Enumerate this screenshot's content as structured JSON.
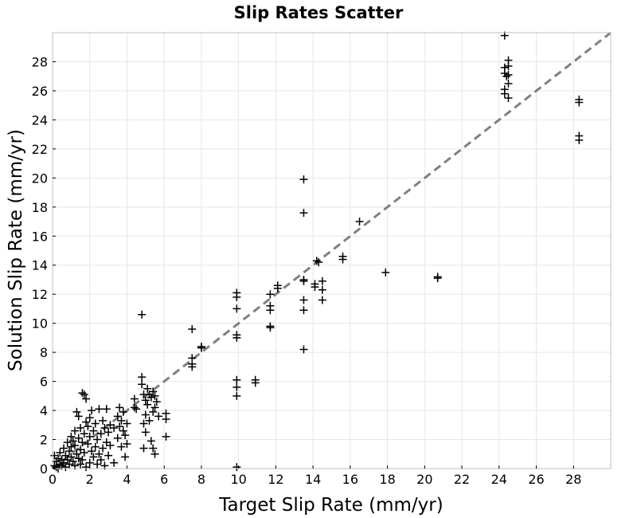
{
  "chart_data": {
    "type": "scatter",
    "title": "Slip Rates Scatter",
    "xlabel": "Target Slip Rate (mm/yr)",
    "ylabel": "Solution Slip Rate (mm/yr)",
    "xlim": [
      0,
      30
    ],
    "ylim": [
      0,
      30
    ],
    "xticks": [
      0,
      2,
      4,
      6,
      8,
      10,
      12,
      14,
      16,
      18,
      20,
      22,
      24,
      26,
      28
    ],
    "yticks": [
      0,
      2,
      4,
      6,
      8,
      10,
      12,
      14,
      16,
      18,
      20,
      22,
      24,
      26,
      28
    ],
    "grid": true,
    "marker": "+",
    "reference_line": {
      "style": "dashed",
      "color": "#808080",
      "from": [
        0,
        0
      ],
      "to": [
        30,
        30
      ]
    },
    "colors": {
      "marker": "#000000",
      "grid": "#e6e6e6",
      "frame": "#bfbfbf",
      "reference": "#808080"
    },
    "points": [
      [
        0.1,
        0.2
      ],
      [
        0.1,
        0.9
      ],
      [
        0.2,
        0.5
      ],
      [
        0.2,
        0.1
      ],
      [
        0.3,
        0.0
      ],
      [
        0.3,
        0.7
      ],
      [
        0.4,
        0.3
      ],
      [
        0.4,
        1.1
      ],
      [
        0.5,
        0.6
      ],
      [
        0.5,
        0.2
      ],
      [
        0.6,
        1.4
      ],
      [
        0.6,
        0.4
      ],
      [
        0.7,
        0.9
      ],
      [
        0.7,
        0.1
      ],
      [
        0.8,
        1.8
      ],
      [
        0.8,
        0.6
      ],
      [
        0.9,
        1.2
      ],
      [
        0.9,
        0.3
      ],
      [
        1.0,
        1.5
      ],
      [
        1.0,
        0.8
      ],
      [
        1.0,
        2.2
      ],
      [
        1.1,
        0.5
      ],
      [
        1.1,
        1.9
      ],
      [
        1.2,
        0.2
      ],
      [
        1.2,
        1.6
      ],
      [
        1.2,
        2.6
      ],
      [
        1.3,
        1.0
      ],
      [
        1.3,
        3.9
      ],
      [
        1.4,
        0.7
      ],
      [
        1.4,
        2.1
      ],
      [
        1.4,
        3.6
      ],
      [
        1.5,
        1.3
      ],
      [
        1.5,
        0.3
      ],
      [
        1.5,
        2.8
      ],
      [
        1.6,
        5.2
      ],
      [
        1.6,
        1.8
      ],
      [
        1.6,
        0.6
      ],
      [
        1.7,
        5.1
      ],
      [
        1.7,
        2.4
      ],
      [
        1.7,
        1.1
      ],
      [
        1.8,
        4.8
      ],
      [
        1.8,
        3.2
      ],
      [
        1.8,
        0.1
      ],
      [
        1.9,
        1.7
      ],
      [
        1.9,
        2.9
      ],
      [
        2.0,
        0.4
      ],
      [
        2.0,
        2.2
      ],
      [
        2.0,
        3.5
      ],
      [
        2.1,
        1.2
      ],
      [
        2.1,
        4.0
      ],
      [
        2.2,
        0.8
      ],
      [
        2.2,
        2.6
      ],
      [
        2.3,
        1.5
      ],
      [
        2.3,
        3.1
      ],
      [
        2.4,
        0.3
      ],
      [
        2.4,
        2.0
      ],
      [
        2.5,
        4.1
      ],
      [
        2.5,
        1.0
      ],
      [
        2.6,
        2.4
      ],
      [
        2.6,
        0.6
      ],
      [
        2.7,
        1.4
      ],
      [
        2.7,
        3.3
      ],
      [
        2.8,
        0.2
      ],
      [
        2.8,
        2.8
      ],
      [
        2.9,
        4.1
      ],
      [
        2.9,
        1.8
      ],
      [
        3.0,
        2.5
      ],
      [
        3.0,
        0.9
      ],
      [
        3.1,
        3.0
      ],
      [
        3.1,
        1.6
      ],
      [
        3.3,
        2.8
      ],
      [
        3.3,
        0.4
      ],
      [
        3.5,
        3.6
      ],
      [
        3.5,
        2.1
      ],
      [
        3.6,
        4.2
      ],
      [
        3.6,
        2.9
      ],
      [
        3.7,
        1.5
      ],
      [
        3.7,
        3.3
      ],
      [
        3.8,
        2.6
      ],
      [
        3.8,
        3.9
      ],
      [
        3.9,
        0.8
      ],
      [
        3.9,
        2.3
      ],
      [
        4.0,
        3.1
      ],
      [
        4.0,
        1.7
      ],
      [
        4.4,
        4.2
      ],
      [
        4.4,
        4.8
      ],
      [
        4.5,
        4.1
      ],
      [
        4.8,
        10.6
      ],
      [
        4.8,
        6.3
      ],
      [
        4.8,
        5.8
      ],
      [
        4.9,
        5.1
      ],
      [
        4.9,
        3.1
      ],
      [
        4.9,
        1.4
      ],
      [
        5.0,
        4.7
      ],
      [
        5.0,
        3.7
      ],
      [
        5.0,
        2.5
      ],
      [
        5.1,
        5.5
      ],
      [
        5.1,
        4.4
      ],
      [
        5.2,
        5.1
      ],
      [
        5.2,
        3.3
      ],
      [
        5.3,
        4.9
      ],
      [
        5.3,
        1.9
      ],
      [
        5.4,
        5.3
      ],
      [
        5.4,
        3.9
      ],
      [
        5.4,
        1.4
      ],
      [
        5.5,
        5.0
      ],
      [
        5.5,
        4.2
      ],
      [
        5.5,
        1.0
      ],
      [
        5.6,
        4.6
      ],
      [
        5.7,
        3.6
      ],
      [
        6.1,
        3.8
      ],
      [
        6.1,
        3.4
      ],
      [
        6.1,
        2.2
      ],
      [
        7.5,
        9.6
      ],
      [
        7.5,
        7.6
      ],
      [
        7.5,
        7.2
      ],
      [
        7.5,
        7.0
      ],
      [
        8.0,
        8.4
      ],
      [
        8.0,
        8.3
      ],
      [
        9.9,
        12.1
      ],
      [
        9.9,
        11.8
      ],
      [
        9.9,
        11.0
      ],
      [
        9.9,
        9.2
      ],
      [
        9.9,
        9.0
      ],
      [
        9.9,
        6.1
      ],
      [
        9.9,
        5.6
      ],
      [
        9.9,
        5.0
      ],
      [
        9.9,
        0.1
      ],
      [
        10.9,
        6.1
      ],
      [
        10.9,
        5.9
      ],
      [
        11.7,
        12.0
      ],
      [
        11.7,
        11.2
      ],
      [
        11.7,
        10.9
      ],
      [
        11.7,
        9.8
      ],
      [
        11.7,
        9.7
      ],
      [
        12.1,
        12.6
      ],
      [
        12.1,
        12.4
      ],
      [
        13.5,
        19.9
      ],
      [
        13.5,
        17.6
      ],
      [
        13.5,
        13.0
      ],
      [
        13.5,
        12.9
      ],
      [
        13.5,
        11.6
      ],
      [
        13.5,
        10.9
      ],
      [
        13.5,
        8.2
      ],
      [
        14.1,
        12.7
      ],
      [
        14.1,
        12.5
      ],
      [
        14.2,
        14.3
      ],
      [
        14.3,
        14.2
      ],
      [
        14.5,
        12.9
      ],
      [
        14.5,
        12.3
      ],
      [
        14.5,
        11.6
      ],
      [
        15.6,
        14.6
      ],
      [
        15.6,
        14.4
      ],
      [
        16.5,
        17.0
      ],
      [
        17.9,
        13.5
      ],
      [
        20.7,
        13.2
      ],
      [
        20.7,
        13.1
      ],
      [
        24.3,
        29.8
      ],
      [
        24.3,
        27.6
      ],
      [
        24.3,
        27.2
      ],
      [
        24.3,
        26.1
      ],
      [
        24.3,
        25.8
      ],
      [
        24.4,
        27.0
      ],
      [
        24.5,
        28.1
      ],
      [
        24.5,
        27.7
      ],
      [
        24.5,
        27.1
      ],
      [
        24.5,
        26.5
      ],
      [
        24.5,
        25.5
      ],
      [
        28.3,
        25.4
      ],
      [
        28.3,
        25.2
      ],
      [
        28.3,
        22.9
      ],
      [
        28.3,
        22.6
      ]
    ]
  }
}
